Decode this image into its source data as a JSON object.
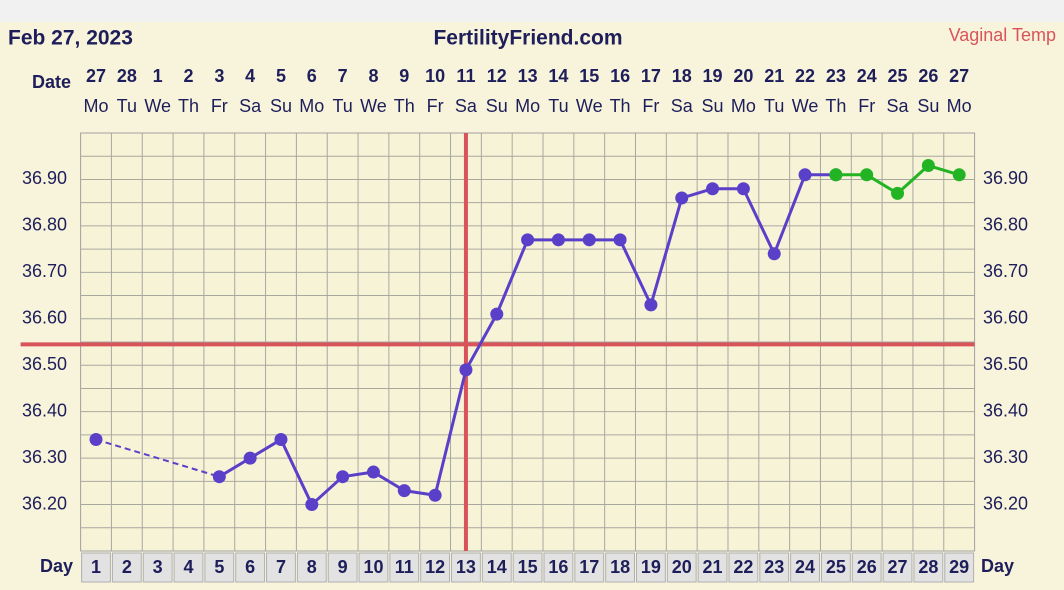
{
  "chart_data": {
    "type": "line",
    "title": "FertilityFriend.com",
    "date": "Feb 27, 2023",
    "subtitle": "Vaginal Temp",
    "date_label": "Date",
    "day_label": "Day",
    "categories": [
      "27",
      "28",
      "1",
      "2",
      "3",
      "4",
      "5",
      "6",
      "7",
      "8",
      "9",
      "10",
      "11",
      "12",
      "13",
      "14",
      "15",
      "16",
      "17",
      "18",
      "19",
      "20",
      "21",
      "22",
      "23",
      "24",
      "25",
      "26",
      "27"
    ],
    "weekdays": [
      "Mo",
      "Tu",
      "We",
      "Th",
      "Fr",
      "Sa",
      "Su",
      "Mo",
      "Tu",
      "We",
      "Th",
      "Fr",
      "Sa",
      "Su",
      "Mo",
      "Tu",
      "We",
      "Th",
      "Fr",
      "Sa",
      "Su",
      "Mo",
      "Tu",
      "We",
      "Th",
      "Fr",
      "Sa",
      "Su",
      "Mo"
    ],
    "days": [
      1,
      2,
      3,
      4,
      5,
      6,
      7,
      8,
      9,
      10,
      11,
      12,
      13,
      14,
      15,
      16,
      17,
      18,
      19,
      20,
      21,
      22,
      23,
      24,
      25,
      26,
      27,
      28,
      29
    ],
    "series": [
      {
        "color": "#5a40c8",
        "values": [
          36.34,
          null,
          null,
          null,
          36.26,
          36.3,
          36.34,
          36.2,
          36.26,
          36.27,
          36.23,
          36.22,
          36.49,
          36.61,
          36.77,
          36.77,
          36.77,
          36.77,
          36.63,
          36.86,
          36.88,
          36.88,
          36.74,
          36.91,
          36.91,
          null,
          null,
          null,
          null
        ]
      },
      {
        "color": "#22b422",
        "values": [
          null,
          null,
          null,
          null,
          null,
          null,
          null,
          null,
          null,
          null,
          null,
          null,
          null,
          null,
          null,
          null,
          null,
          null,
          null,
          null,
          null,
          null,
          null,
          null,
          36.91,
          36.91,
          36.87,
          36.93,
          36.91
        ]
      }
    ],
    "coverline": 36.545,
    "ovulation_day": 13,
    "marker_color": "#d9545a",
    "ylim": [
      36.1,
      37.0
    ],
    "yticks": [
      {
        "value": 36.2,
        "label": "36.20"
      },
      {
        "value": 36.3,
        "label": "36.30"
      },
      {
        "value": 36.4,
        "label": "36.40"
      },
      {
        "value": 36.5,
        "label": "36.50"
      },
      {
        "value": 36.6,
        "label": "36.60"
      },
      {
        "value": 36.7,
        "label": "36.70"
      },
      {
        "value": 36.8,
        "label": "36.80"
      },
      {
        "value": 36.9,
        "label": "36.90"
      }
    ],
    "grid": true
  }
}
